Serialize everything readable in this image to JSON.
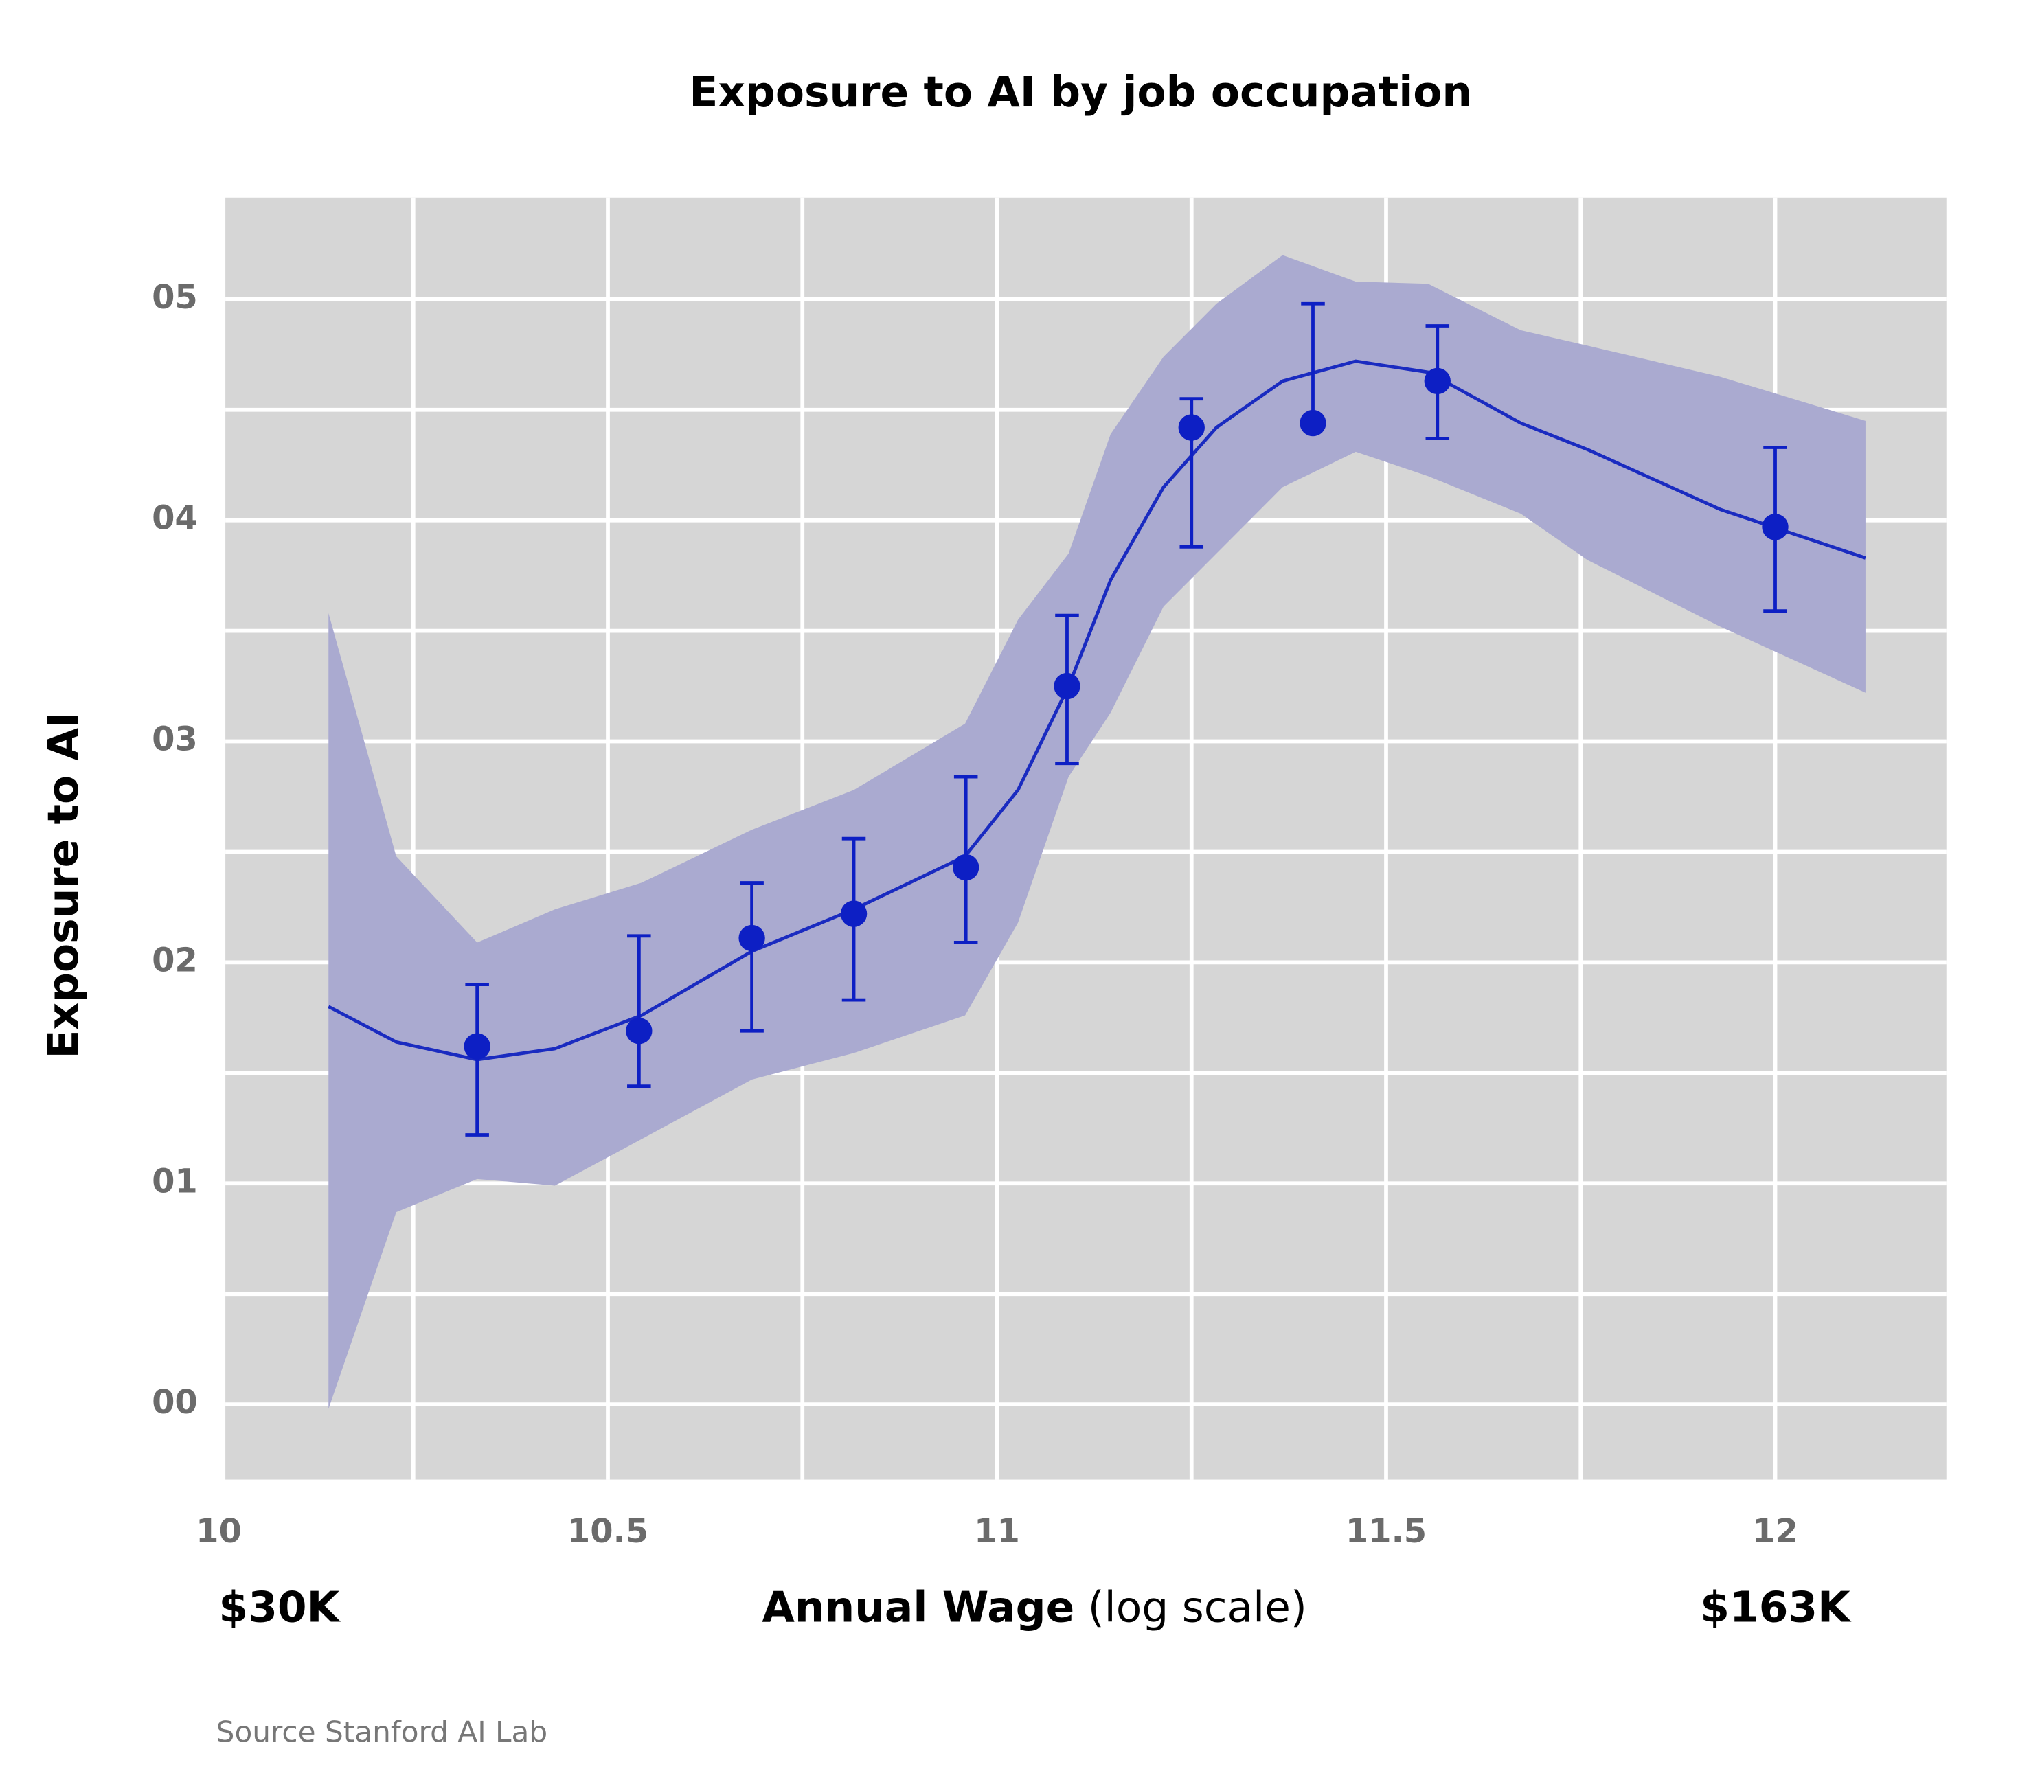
{
  "chart_data": {
    "type": "line",
    "title": "Exposure to AI by job occupation",
    "y_label": "Exposure to AI",
    "x_label": "Annual Wage",
    "x_label_note": "(log scale)",
    "x_annotations": [
      {
        "x": 10,
        "label": "$30K"
      },
      {
        "x": 12,
        "label": "$163K"
      }
    ],
    "source": "Source Stanford AI Lab",
    "log_scale": false,
    "grid": true,
    "background": "#d6d6d6",
    "xlim": [
      10,
      12.22
    ],
    "ylim": [
      -0.034,
      0.546
    ],
    "xticks": [
      10,
      10.5,
      11,
      11.5,
      12
    ],
    "xgrid": [
      10.25,
      10.5,
      10.75,
      11,
      11.25,
      11.5,
      11.75,
      12
    ],
    "yticks": [
      {
        "value": 0,
        "label": "00"
      },
      {
        "value": 0.1,
        "label": "01"
      },
      {
        "value": 0.2,
        "label": "02"
      },
      {
        "value": 0.3,
        "label": "03"
      },
      {
        "value": 0.4,
        "label": "04"
      },
      {
        "value": 0.5,
        "label": "05"
      }
    ],
    "ygrid": [
      0,
      0.05,
      0.1,
      0.15,
      0.2,
      0.25,
      0.3,
      0.35,
      0.4,
      0.45,
      0.5
    ],
    "fit": {
      "color": "#1a2bc0",
      "band_color": "#aaaad0",
      "x": [
        10.141,
        10.228,
        10.332,
        10.432,
        10.543,
        10.685,
        10.816,
        10.959,
        11.027,
        11.092,
        11.146,
        11.214,
        11.282,
        11.367,
        11.461,
        11.554,
        11.673,
        11.759,
        11.929,
        12.116
      ],
      "values": [
        0.18,
        0.164,
        0.156,
        0.161,
        0.176,
        0.205,
        0.224,
        0.248,
        0.278,
        0.325,
        0.373,
        0.415,
        0.442,
        0.463,
        0.472,
        0.467,
        0.444,
        0.432,
        0.405,
        0.383
      ],
      "upper": [
        0.358,
        0.248,
        0.209,
        0.224,
        0.236,
        0.26,
        0.278,
        0.308,
        0.355,
        0.385,
        0.439,
        0.474,
        0.498,
        0.52,
        0.508,
        0.507,
        0.486,
        0.479,
        0.465,
        0.445
      ],
      "lower": [
        -0.002,
        0.087,
        0.102,
        0.099,
        0.12,
        0.147,
        0.159,
        0.176,
        0.218,
        0.284,
        0.313,
        0.361,
        0.385,
        0.415,
        0.431,
        0.42,
        0.403,
        0.382,
        0.352,
        0.322
      ]
    },
    "points": {
      "color": "#0d1fc4",
      "x": [
        10.332,
        10.54,
        10.685,
        10.816,
        10.96,
        11.09,
        11.25,
        11.406,
        11.566,
        12.0
      ],
      "values": [
        0.162,
        0.169,
        0.211,
        0.222,
        0.243,
        0.325,
        0.442,
        0.444,
        0.463,
        0.397
      ],
      "upper": [
        0.19,
        0.212,
        0.236,
        0.256,
        0.284,
        0.357,
        0.455,
        0.498,
        0.488,
        0.433
      ],
      "lower": [
        0.122,
        0.144,
        0.169,
        0.183,
        0.209,
        0.29,
        0.388,
        0.444,
        0.437,
        0.359
      ]
    }
  }
}
